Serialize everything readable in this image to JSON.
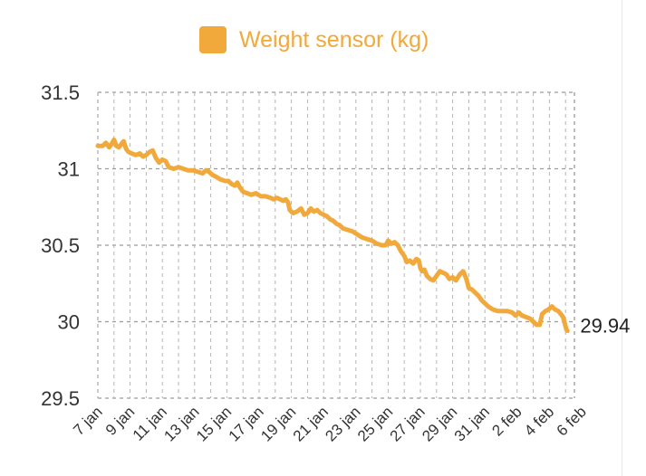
{
  "chart_data": {
    "type": "line",
    "series": [
      {
        "name": "Weight sensor (kg)",
        "color": "#F2A93B",
        "points": [
          [
            0,
            31.15
          ],
          [
            0.3,
            31.15
          ],
          [
            0.5,
            31.17
          ],
          [
            0.7,
            31.14
          ],
          [
            0.9,
            31.17
          ],
          [
            1.0,
            31.19
          ],
          [
            1.15,
            31.15
          ],
          [
            1.3,
            31.14
          ],
          [
            1.45,
            31.16
          ],
          [
            1.6,
            31.18
          ],
          [
            1.75,
            31.13
          ],
          [
            1.9,
            31.11
          ],
          [
            2.1,
            31.1
          ],
          [
            2.35,
            31.09
          ],
          [
            2.6,
            31.1
          ],
          [
            2.8,
            31.08
          ],
          [
            3.0,
            31.09
          ],
          [
            3.2,
            31.11
          ],
          [
            3.4,
            31.12
          ],
          [
            3.6,
            31.07
          ],
          [
            3.8,
            31.04
          ],
          [
            4.0,
            31.06
          ],
          [
            4.2,
            31.05
          ],
          [
            4.4,
            31.01
          ],
          [
            4.7,
            31.0
          ],
          [
            5.0,
            31.01
          ],
          [
            5.3,
            31.0
          ],
          [
            5.6,
            30.99
          ],
          [
            5.9,
            30.99
          ],
          [
            6.2,
            30.98
          ],
          [
            6.5,
            30.97
          ],
          [
            6.7,
            30.99
          ],
          [
            6.9,
            30.98
          ],
          [
            7.1,
            30.96
          ],
          [
            7.3,
            30.95
          ],
          [
            7.6,
            30.93
          ],
          [
            7.9,
            30.92
          ],
          [
            8.1,
            30.92
          ],
          [
            8.3,
            30.9
          ],
          [
            8.5,
            30.89
          ],
          [
            8.65,
            30.91
          ],
          [
            8.8,
            30.88
          ],
          [
            9.0,
            30.85
          ],
          [
            9.25,
            30.84
          ],
          [
            9.5,
            30.83
          ],
          [
            9.8,
            30.84
          ],
          [
            10.1,
            30.82
          ],
          [
            10.4,
            30.82
          ],
          [
            10.7,
            30.81
          ],
          [
            10.9,
            30.8
          ],
          [
            11.1,
            30.81
          ],
          [
            11.3,
            30.8
          ],
          [
            11.5,
            30.79
          ],
          [
            11.65,
            30.8
          ],
          [
            11.8,
            30.78
          ],
          [
            11.9,
            30.73
          ],
          [
            12.1,
            30.71
          ],
          [
            12.35,
            30.72
          ],
          [
            12.6,
            30.74
          ],
          [
            12.8,
            30.7
          ],
          [
            13.0,
            30.71
          ],
          [
            13.2,
            30.74
          ],
          [
            13.4,
            30.72
          ],
          [
            13.6,
            30.73
          ],
          [
            13.8,
            30.71
          ],
          [
            14.0,
            30.7
          ],
          [
            14.2,
            30.69
          ],
          [
            14.4,
            30.67
          ],
          [
            14.6,
            30.66
          ],
          [
            14.8,
            30.64
          ],
          [
            15.0,
            30.63
          ],
          [
            15.2,
            30.61
          ],
          [
            15.5,
            30.6
          ],
          [
            15.8,
            30.59
          ],
          [
            16.1,
            30.57
          ],
          [
            16.4,
            30.55
          ],
          [
            16.7,
            30.54
          ],
          [
            17.0,
            30.53
          ],
          [
            17.3,
            30.51
          ],
          [
            17.6,
            30.5
          ],
          [
            17.85,
            30.5
          ],
          [
            18.0,
            30.53
          ],
          [
            18.2,
            30.51
          ],
          [
            18.4,
            30.52
          ],
          [
            18.6,
            30.5
          ],
          [
            18.8,
            30.46
          ],
          [
            19.0,
            30.43
          ],
          [
            19.15,
            30.39
          ],
          [
            19.35,
            30.4
          ],
          [
            19.55,
            30.38
          ],
          [
            19.75,
            30.41
          ],
          [
            19.9,
            30.4
          ],
          [
            20.0,
            30.35
          ],
          [
            20.1,
            30.33
          ],
          [
            20.25,
            30.34
          ],
          [
            20.4,
            30.3
          ],
          [
            20.6,
            30.28
          ],
          [
            20.8,
            30.27
          ],
          [
            21.0,
            30.3
          ],
          [
            21.2,
            30.33
          ],
          [
            21.4,
            30.32
          ],
          [
            21.6,
            30.31
          ],
          [
            21.8,
            30.28
          ],
          [
            22.0,
            30.29
          ],
          [
            22.2,
            30.27
          ],
          [
            22.45,
            30.31
          ],
          [
            22.65,
            30.33
          ],
          [
            22.85,
            30.28
          ],
          [
            23.0,
            30.22
          ],
          [
            23.2,
            30.21
          ],
          [
            23.4,
            30.19
          ],
          [
            23.6,
            30.17
          ],
          [
            23.8,
            30.14
          ],
          [
            24.0,
            30.12
          ],
          [
            24.2,
            30.1
          ],
          [
            24.5,
            30.08
          ],
          [
            24.8,
            30.07
          ],
          [
            25.1,
            30.07
          ],
          [
            25.4,
            30.07
          ],
          [
            25.7,
            30.06
          ],
          [
            25.9,
            30.04
          ],
          [
            26.1,
            30.06
          ],
          [
            26.3,
            30.04
          ],
          [
            26.55,
            30.03
          ],
          [
            26.8,
            30.02
          ],
          [
            27.0,
            30.0
          ],
          [
            27.2,
            29.98
          ],
          [
            27.4,
            29.98
          ],
          [
            27.55,
            30.05
          ],
          [
            27.75,
            30.07
          ],
          [
            27.95,
            30.08
          ],
          [
            28.15,
            30.1
          ],
          [
            28.35,
            30.08
          ],
          [
            28.55,
            30.07
          ],
          [
            28.7,
            30.05
          ],
          [
            28.85,
            30.03
          ],
          [
            28.95,
            29.99
          ],
          [
            29.05,
            29.95
          ],
          [
            29.12,
            29.94
          ]
        ]
      }
    ],
    "title": "",
    "xlabel": "",
    "ylabel": "",
    "xlim": [
      0,
      29.12
    ],
    "ylim": [
      29.5,
      31.5
    ],
    "yticks": [
      {
        "value": 31.5,
        "label": "31.5"
      },
      {
        "value": 31,
        "label": "31"
      },
      {
        "value": 30.5,
        "label": "30.5"
      },
      {
        "value": 30,
        "label": "30"
      },
      {
        "value": 29.5,
        "label": "29.5"
      }
    ],
    "xticks": [
      {
        "value": 0,
        "label": "7 jan"
      },
      {
        "value": 2,
        "label": "9 jan"
      },
      {
        "value": 4,
        "label": "11 jan"
      },
      {
        "value": 6,
        "label": "13 jan"
      },
      {
        "value": 8,
        "label": "15 jan"
      },
      {
        "value": 10,
        "label": "17 jan"
      },
      {
        "value": 12,
        "label": "19 jan"
      },
      {
        "value": 14,
        "label": "21 jan"
      },
      {
        "value": 16,
        "label": "23 jan"
      },
      {
        "value": 18,
        "label": "25 jan"
      },
      {
        "value": 20,
        "label": "27 jan"
      },
      {
        "value": 22,
        "label": "29 jan"
      },
      {
        "value": 24,
        "label": "31 jan"
      },
      {
        "value": 26,
        "label": "2 feb"
      },
      {
        "value": 28,
        "label": "4 feb"
      },
      {
        "value": 30,
        "label": "6 feb"
      }
    ],
    "last_value_label": "29.94",
    "grid": true,
    "legend_position": "top-center"
  }
}
